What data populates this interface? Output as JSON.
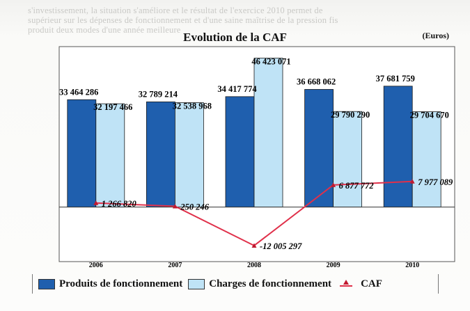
{
  "background_text": [
    "s'investissement, la situation s'améliore et le résultat de l'exercice 2010 permet de",
    "supérieur sur les dépenses de fonctionnement et d'une saine maîtrise de la pression fis",
    "produit deux modes d'une année meilleure"
  ],
  "chart_data": {
    "type": "bar",
    "title": "Evolution de la CAF",
    "unit": "(Euros)",
    "categories": [
      "2006",
      "2007",
      "2008",
      "2009",
      "2010"
    ],
    "series": [
      {
        "name": "Produits de fonctionnement",
        "kind": "bar",
        "color": "#1f5fae",
        "values": [
          33464286,
          32789214,
          34417774,
          36668062,
          37681759
        ],
        "labels": [
          "33 464 286",
          "32 789 214",
          "34 417 774",
          "36 668 062",
          "37 681 759"
        ]
      },
      {
        "name": "Charges de fonctionnement",
        "kind": "bar",
        "color": "#bfe3f6",
        "values": [
          32197466,
          32538968,
          46423071,
          29790290,
          29704670
        ],
        "labels": [
          "32 197 466",
          "32 538 968",
          "46 423 071",
          "29 790 290",
          "29 704 670"
        ]
      },
      {
        "name": "CAF",
        "kind": "line",
        "color": "#e0304a",
        "values": [
          1266820,
          250246,
          -12005297,
          6877772,
          7977089
        ],
        "labels": [
          "1 266 820",
          "250 246",
          "-12 005 297",
          "6 877 772",
          "7 977 089"
        ]
      }
    ],
    "ylim": [
      -17000000,
      50000000
    ],
    "grid": false,
    "legend_position": "bottom"
  }
}
